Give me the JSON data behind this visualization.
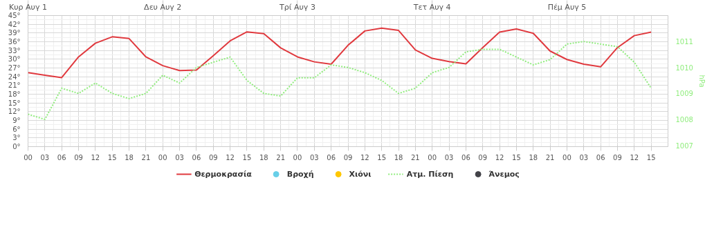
{
  "chart_data": {
    "type": "line",
    "x": [
      0,
      3,
      6,
      9,
      12,
      15,
      18,
      21,
      24,
      27,
      30,
      33,
      36,
      39,
      42,
      45,
      48,
      51,
      54,
      57,
      60,
      63,
      66,
      69,
      72,
      75,
      78,
      81,
      84,
      87,
      90,
      93,
      96,
      99,
      102,
      105,
      108,
      111
    ],
    "series": [
      {
        "name": "Θερμοκρασία",
        "color": "#e0393e",
        "line_style": "solid",
        "values": [
          25.4,
          24.5,
          23.7,
          30.8,
          35.5,
          37.7,
          37.1,
          30.8,
          27.8,
          26.1,
          26.3,
          31.2,
          36.3,
          39.4,
          38.8,
          33.9,
          30.8,
          29.1,
          28.3,
          34.8,
          39.7,
          40.7,
          39.9,
          33.2,
          30.3,
          29.2,
          28.4,
          34.0,
          39.3,
          40.4,
          38.9,
          32.8,
          29.9,
          28.3,
          27.4,
          34.0,
          38.1,
          39.3
        ]
      },
      {
        "name": "Βροχή",
        "type": "scatter",
        "color": "#68cfe8",
        "values": [
          null,
          null,
          null,
          null,
          null,
          null,
          null,
          null,
          null,
          null,
          null,
          null,
          null,
          null,
          null,
          null,
          null,
          null,
          null,
          null,
          null,
          null,
          null,
          null,
          null,
          null,
          null,
          null,
          null,
          null,
          null,
          null,
          null,
          null,
          null,
          null,
          null,
          null
        ]
      },
      {
        "name": "Χιόνι",
        "type": "scatter",
        "color": "#ffc700",
        "values": [
          null,
          null,
          null,
          null,
          null,
          null,
          null,
          null,
          null,
          null,
          null,
          null,
          null,
          null,
          null,
          null,
          null,
          null,
          null,
          null,
          null,
          null,
          null,
          null,
          null,
          null,
          null,
          null,
          null,
          null,
          null,
          null,
          null,
          null,
          null,
          null,
          null,
          null
        ]
      },
      {
        "name": "Ατμ. Πίεση",
        "axis": "y2",
        "color": "#90ed7d",
        "line_style": "dotted",
        "values": [
          1008.2,
          1008.0,
          1009.2,
          1009.0,
          1009.4,
          1009.0,
          1008.8,
          1009.0,
          1009.7,
          1009.4,
          1010.0,
          1010.2,
          1010.4,
          1009.5,
          1009.0,
          1008.9,
          1009.6,
          1009.6,
          1010.1,
          1010.0,
          1009.8,
          1009.5,
          1009.0,
          1009.2,
          1009.8,
          1010.0,
          1010.6,
          1010.7,
          1010.7,
          1010.4,
          1010.1,
          1010.3,
          1010.9,
          1011.0,
          1010.9,
          1010.8,
          1010.2,
          1009.2
        ]
      },
      {
        "name": "Άνεμος",
        "type": "scatter",
        "color": "#434348",
        "values": [
          null,
          null,
          null,
          null,
          null,
          null,
          null,
          null,
          null,
          null,
          null,
          null,
          null,
          null,
          null,
          null,
          null,
          null,
          null,
          null,
          null,
          null,
          null,
          null,
          null,
          null,
          null,
          null,
          null,
          null,
          null,
          null,
          null,
          null,
          null,
          null,
          null,
          null
        ]
      }
    ],
    "xlim": [
      0,
      114
    ],
    "xticks": [
      {
        "value": 0,
        "label": "00"
      },
      {
        "value": 3,
        "label": "03"
      },
      {
        "value": 6,
        "label": "06"
      },
      {
        "value": 9,
        "label": "09"
      },
      {
        "value": 12,
        "label": "12"
      },
      {
        "value": 15,
        "label": "15"
      },
      {
        "value": 18,
        "label": "18"
      },
      {
        "value": 21,
        "label": "21"
      },
      {
        "value": 24,
        "label": "00"
      },
      {
        "value": 27,
        "label": "03"
      },
      {
        "value": 30,
        "label": "06"
      },
      {
        "value": 33,
        "label": "09"
      },
      {
        "value": 36,
        "label": "12"
      },
      {
        "value": 39,
        "label": "15"
      },
      {
        "value": 42,
        "label": "18"
      },
      {
        "value": 45,
        "label": "21"
      },
      {
        "value": 48,
        "label": "00"
      },
      {
        "value": 51,
        "label": "03"
      },
      {
        "value": 54,
        "label": "06"
      },
      {
        "value": 57,
        "label": "09"
      },
      {
        "value": 60,
        "label": "12"
      },
      {
        "value": 63,
        "label": "15"
      },
      {
        "value": 66,
        "label": "18"
      },
      {
        "value": 69,
        "label": "21"
      },
      {
        "value": 72,
        "label": "00"
      },
      {
        "value": 75,
        "label": "03"
      },
      {
        "value": 78,
        "label": "06"
      },
      {
        "value": 81,
        "label": "09"
      },
      {
        "value": 84,
        "label": "12"
      },
      {
        "value": 87,
        "label": "15"
      },
      {
        "value": 90,
        "label": "18"
      },
      {
        "value": 93,
        "label": "21"
      },
      {
        "value": 96,
        "label": "00"
      },
      {
        "value": 99,
        "label": "03"
      },
      {
        "value": 102,
        "label": "06"
      },
      {
        "value": 105,
        "label": "09"
      },
      {
        "value": 108,
        "label": "12"
      },
      {
        "value": 111,
        "label": "15"
      }
    ],
    "annotations": [
      {
        "text": "Κυρ Αυγ 1",
        "x": 0
      },
      {
        "text": "Δευ Αυγ 2",
        "x": 24
      },
      {
        "text": "Τρί Αυγ 3",
        "x": 48
      },
      {
        "text": "Τετ Αυγ 4",
        "x": 72
      },
      {
        "text": "Πέμ Αυγ 5",
        "x": 96
      }
    ],
    "ylim": [
      0,
      45
    ],
    "yticks": [
      {
        "value": 0,
        "label": "0°"
      },
      {
        "value": 3,
        "label": "3°"
      },
      {
        "value": 6,
        "label": "6°"
      },
      {
        "value": 9,
        "label": "9°"
      },
      {
        "value": 12,
        "label": "12°"
      },
      {
        "value": 15,
        "label": "15°"
      },
      {
        "value": 18,
        "label": "18°"
      },
      {
        "value": 21,
        "label": "21°"
      },
      {
        "value": 24,
        "label": "24°"
      },
      {
        "value": 27,
        "label": "27°"
      },
      {
        "value": 30,
        "label": "30°"
      },
      {
        "value": 33,
        "label": "33°"
      },
      {
        "value": 36,
        "label": "36°"
      },
      {
        "value": 39,
        "label": "39°"
      },
      {
        "value": 42,
        "label": "42°"
      },
      {
        "value": 45,
        "label": "45°"
      }
    ],
    "y2lim": [
      1006.95,
      1012
    ],
    "y2ticks": [
      1007,
      1008,
      1009,
      1010,
      1011
    ],
    "y2label": "hPa",
    "grid": true,
    "legend": "bottom"
  }
}
